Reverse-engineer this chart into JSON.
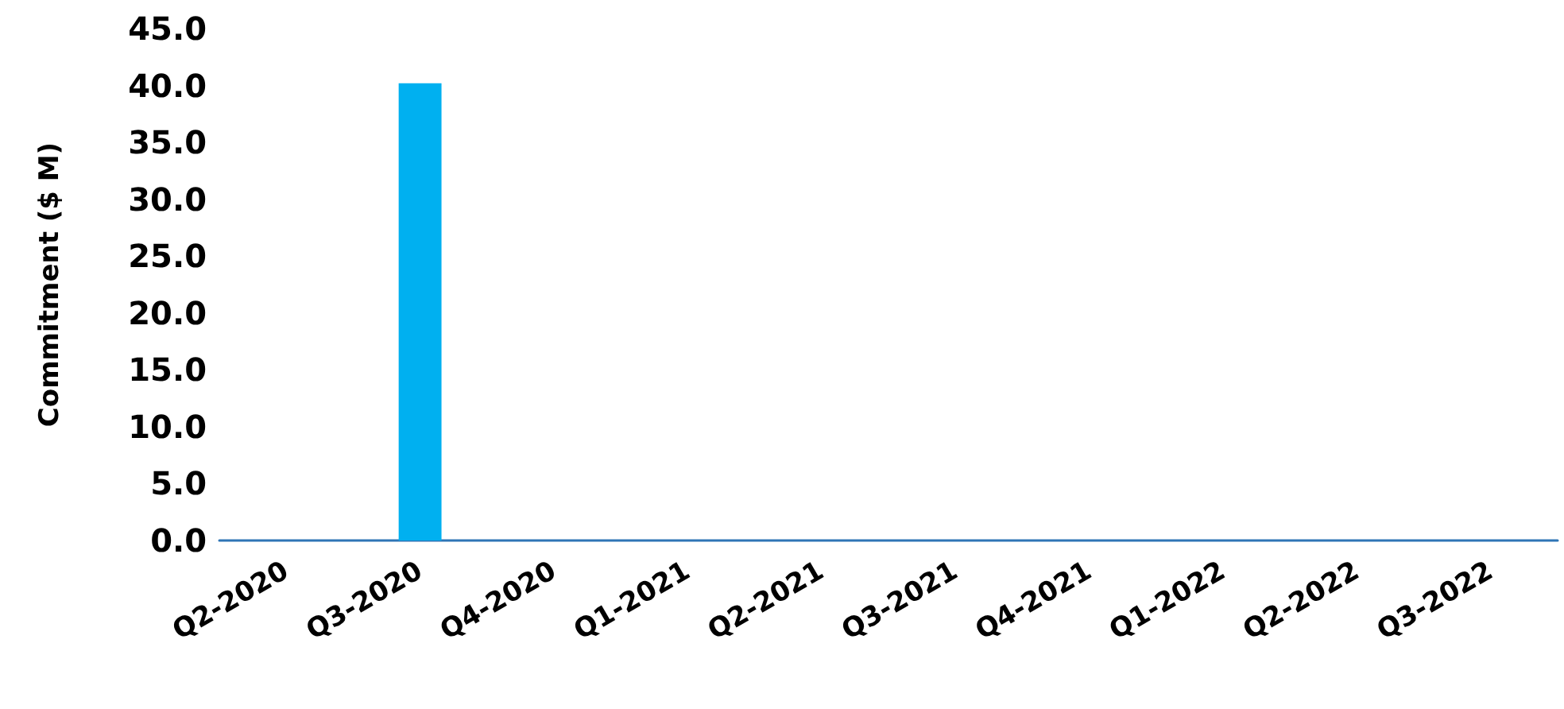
{
  "chart_data": {
    "type": "bar",
    "ylabel": "Commitment ($ M)",
    "categories": [
      "Q2-2020",
      "Q3-2020",
      "Q4-2020",
      "Q1-2021",
      "Q2-2021",
      "Q3-2021",
      "Q4-2021",
      "Q1-2022",
      "Q2-2022",
      "Q3-2022"
    ],
    "values": [
      0,
      40.2,
      0,
      0,
      0,
      0,
      0,
      0,
      0,
      0
    ],
    "color": "#00b0f0",
    "ylim": [
      0,
      45
    ],
    "yticks": [
      {
        "value": 0,
        "label": "0.0"
      },
      {
        "value": 5,
        "label": "5.0"
      },
      {
        "value": 10,
        "label": "10.0"
      },
      {
        "value": 15,
        "label": "15.0"
      },
      {
        "value": 20,
        "label": "20.0"
      },
      {
        "value": 25,
        "label": "25.0"
      },
      {
        "value": 30,
        "label": "30.0"
      },
      {
        "value": 35,
        "label": "35.0"
      },
      {
        "value": 40,
        "label": "40.0"
      },
      {
        "value": 45,
        "label": "45.0"
      }
    ]
  }
}
